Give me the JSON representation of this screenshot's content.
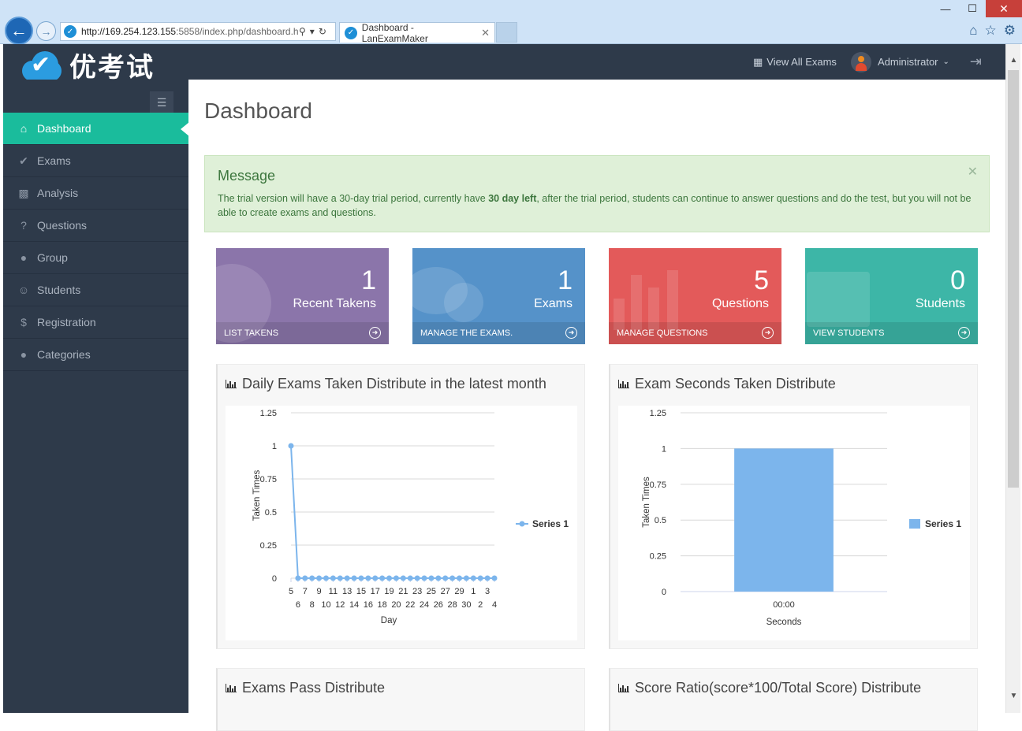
{
  "browser": {
    "url_host": "http://169.254.123.155",
    "url_rest": ":5858/index.php/dashboard.h",
    "tab_title": "Dashboard - LanExamMaker"
  },
  "header": {
    "logo_text": "优考试",
    "view_all_label": "View All Exams",
    "user_name": "Administrator"
  },
  "sidebar": {
    "items": [
      {
        "label": "Dashboard",
        "icon": "home-icon"
      },
      {
        "label": "Exams",
        "icon": "check-circle-icon"
      },
      {
        "label": "Analysis",
        "icon": "bar-chart-icon"
      },
      {
        "label": "Questions",
        "icon": "question-circle-icon"
      },
      {
        "label": "Group",
        "icon": "users-icon"
      },
      {
        "label": "Students",
        "icon": "user-icon"
      },
      {
        "label": "Registration",
        "icon": "dollar-icon"
      },
      {
        "label": "Categories",
        "icon": "users-icon"
      }
    ]
  },
  "main": {
    "title": "Dashboard",
    "alert": {
      "heading": "Message",
      "text_before": "The trial version will have a 30-day trial period, currently have ",
      "text_bold": "30 day left",
      "text_after": ", after the trial period, students can continue to answer questions and do the test, but you will not be able to create exams and questions."
    },
    "stats": [
      {
        "count": "1",
        "label": "Recent Takens",
        "link": "LIST TAKENS",
        "color": "#8b75aa"
      },
      {
        "count": "1",
        "label": "Exams",
        "link": "MANAGE THE EXAMS.",
        "color": "#5592c9"
      },
      {
        "count": "5",
        "label": "Questions",
        "link": "MANAGE QUESTIONS",
        "color": "#e35a5a"
      },
      {
        "count": "0",
        "label": "Students",
        "link": "VIEW STUDENTS",
        "color": "#3db6a7"
      }
    ],
    "panels": [
      {
        "title": "Daily Exams Taken Distribute in the latest month"
      },
      {
        "title": "Exam Seconds Taken Distribute"
      },
      {
        "title": "Exams Pass Distribute"
      },
      {
        "title": "Score Ratio(score*100/Total Score) Distribute"
      }
    ]
  },
  "chart_data": [
    {
      "type": "line",
      "title": "Daily Exams Taken Distribute in the latest month",
      "xlabel": "Day",
      "ylabel": "Taken Times",
      "ylim": [
        0,
        1.25
      ],
      "yticks": [
        "1.25",
        "1",
        "0.75",
        "0.5",
        "0.25",
        "0"
      ],
      "categories": [
        "5",
        "6",
        "7",
        "8",
        "9",
        "10",
        "11",
        "12",
        "13",
        "14",
        "15",
        "16",
        "17",
        "18",
        "19",
        "20",
        "21",
        "22",
        "23",
        "24",
        "25",
        "26",
        "27",
        "28",
        "29",
        "30",
        "1",
        "2",
        "3",
        "4"
      ],
      "series": [
        {
          "name": "Series 1",
          "color": "#7cb5ec",
          "values": [
            1,
            0,
            0,
            0,
            0,
            0,
            0,
            0,
            0,
            0,
            0,
            0,
            0,
            0,
            0,
            0,
            0,
            0,
            0,
            0,
            0,
            0,
            0,
            0,
            0,
            0,
            0,
            0,
            0,
            0
          ]
        }
      ],
      "legend": "right"
    },
    {
      "type": "bar",
      "title": "Exam Seconds Taken Distribute",
      "xlabel": "Seconds",
      "ylabel": "Taken Times",
      "ylim": [
        0,
        1.25
      ],
      "yticks": [
        "1.25",
        "1",
        "0.75",
        "0.5",
        "0.25",
        "0"
      ],
      "categories": [
        "00:00"
      ],
      "series": [
        {
          "name": "Series 1",
          "color": "#7cb5ec",
          "values": [
            1
          ]
        }
      ],
      "legend": "right"
    }
  ]
}
